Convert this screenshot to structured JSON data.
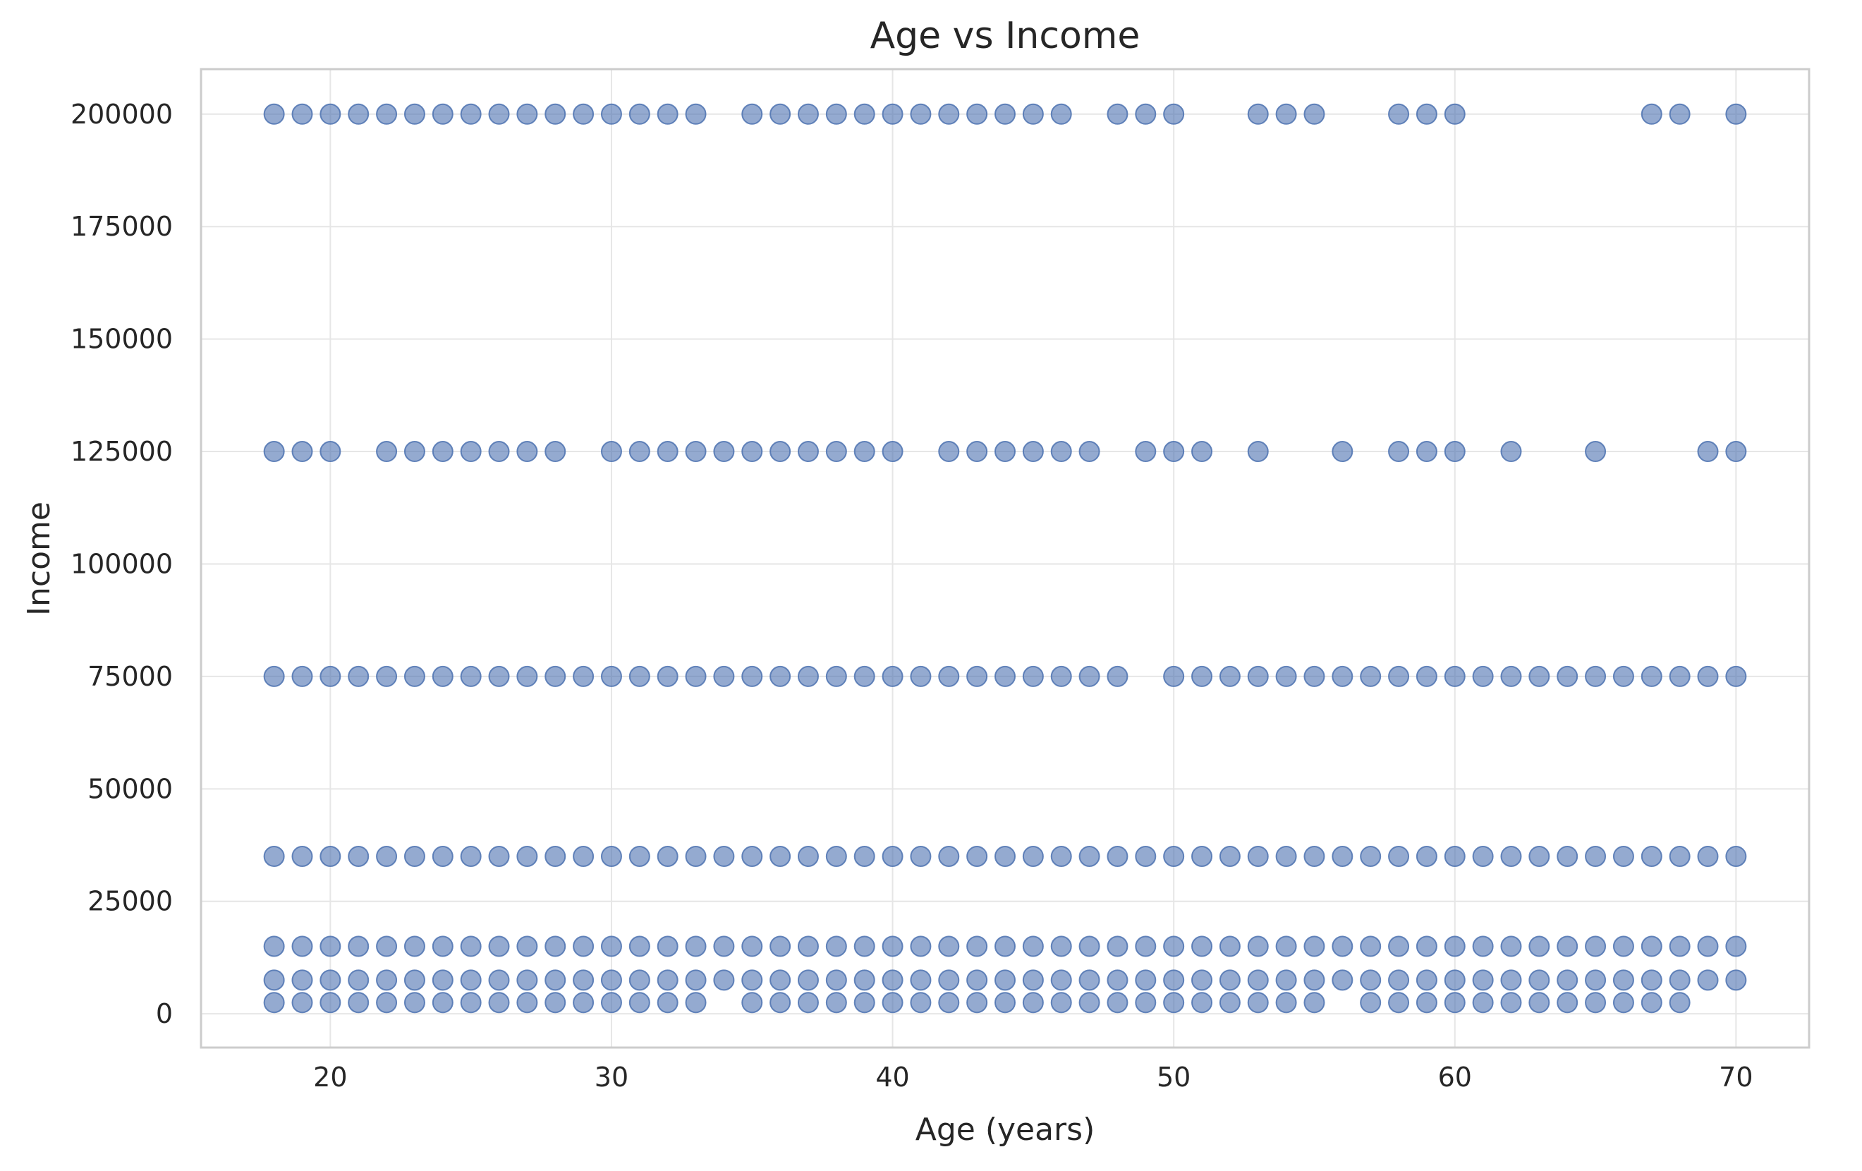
{
  "chart_data": {
    "type": "scatter",
    "title": "Age vs Income",
    "xlabel": "Age (years)",
    "ylabel": "Income",
    "xlim": [
      15.4,
      72.6
    ],
    "ylim": [
      -7500,
      210000
    ],
    "xticks": [
      20,
      30,
      40,
      50,
      60,
      70
    ],
    "yticks": [
      0,
      25000,
      50000,
      75000,
      100000,
      125000,
      150000,
      175000,
      200000
    ],
    "grid": true,
    "legend": "none",
    "marker_color": "#4c72b0",
    "marker_alpha": 0.6,
    "income_levels": [
      2500,
      7500,
      15000,
      35000,
      75000,
      125000,
      200000
    ],
    "points_by_income": [
      {
        "income": 200000,
        "ages": [
          18,
          19,
          20,
          21,
          22,
          23,
          24,
          25,
          26,
          27,
          28,
          29,
          30,
          31,
          32,
          33,
          35,
          36,
          37,
          38,
          39,
          40,
          41,
          42,
          43,
          44,
          45,
          46,
          48,
          49,
          50,
          53,
          54,
          55,
          58,
          59,
          60,
          67,
          68,
          70
        ]
      },
      {
        "income": 125000,
        "ages": [
          18,
          19,
          20,
          22,
          23,
          24,
          25,
          26,
          27,
          28,
          30,
          31,
          32,
          33,
          34,
          35,
          36,
          37,
          38,
          39,
          40,
          42,
          43,
          44,
          45,
          46,
          47,
          49,
          50,
          51,
          53,
          56,
          58,
          59,
          60,
          62,
          65,
          69,
          70
        ]
      },
      {
        "income": 75000,
        "ages": [
          18,
          19,
          20,
          21,
          22,
          23,
          24,
          25,
          26,
          27,
          28,
          29,
          30,
          31,
          32,
          33,
          34,
          35,
          36,
          37,
          38,
          39,
          40,
          41,
          42,
          43,
          44,
          45,
          46,
          47,
          48,
          50,
          51,
          52,
          53,
          54,
          55,
          56,
          57,
          58,
          59,
          60,
          61,
          62,
          63,
          64,
          65,
          66,
          67,
          68,
          69,
          70
        ]
      },
      {
        "income": 35000,
        "ages": [
          18,
          19,
          20,
          21,
          22,
          23,
          24,
          25,
          26,
          27,
          28,
          29,
          30,
          31,
          32,
          33,
          34,
          35,
          36,
          37,
          38,
          39,
          40,
          41,
          42,
          43,
          44,
          45,
          46,
          47,
          48,
          49,
          50,
          51,
          52,
          53,
          54,
          55,
          56,
          57,
          58,
          59,
          60,
          61,
          62,
          63,
          64,
          65,
          66,
          67,
          68,
          69,
          70
        ]
      },
      {
        "income": 15000,
        "ages": [
          18,
          19,
          20,
          21,
          22,
          23,
          24,
          25,
          26,
          27,
          28,
          29,
          30,
          31,
          32,
          33,
          34,
          35,
          36,
          37,
          38,
          39,
          40,
          41,
          42,
          43,
          44,
          45,
          46,
          47,
          48,
          49,
          50,
          51,
          52,
          53,
          54,
          55,
          56,
          57,
          58,
          59,
          60,
          61,
          62,
          63,
          64,
          65,
          66,
          67,
          68,
          69,
          70
        ]
      },
      {
        "income": 7500,
        "ages": [
          18,
          19,
          20,
          21,
          22,
          23,
          24,
          25,
          26,
          27,
          28,
          29,
          30,
          31,
          32,
          33,
          34,
          35,
          36,
          37,
          38,
          39,
          40,
          41,
          42,
          43,
          44,
          45,
          46,
          47,
          48,
          49,
          50,
          51,
          52,
          53,
          54,
          55,
          56,
          57,
          58,
          59,
          60,
          61,
          62,
          63,
          64,
          65,
          66,
          67,
          68,
          69,
          70
        ]
      },
      {
        "income": 2500,
        "ages": [
          18,
          19,
          20,
          21,
          22,
          23,
          24,
          25,
          26,
          27,
          28,
          29,
          30,
          31,
          32,
          33,
          35,
          36,
          37,
          38,
          39,
          40,
          41,
          42,
          43,
          44,
          45,
          46,
          47,
          48,
          49,
          50,
          51,
          52,
          53,
          54,
          55,
          57,
          58,
          59,
          60,
          61,
          62,
          63,
          64,
          65,
          66,
          67,
          68
        ]
      }
    ]
  }
}
